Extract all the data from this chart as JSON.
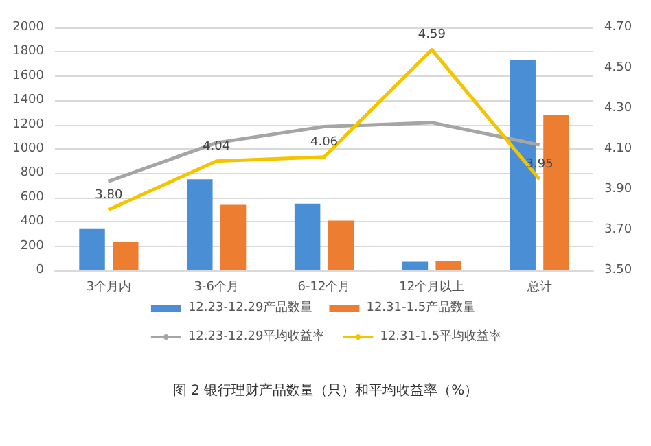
{
  "chart_data": {
    "type": "bar",
    "title": "图 2 银行理财产品数量（只）和平均收益率（%）",
    "categories": [
      "3个月内",
      "3-6个月",
      "6-12个月",
      "12个月以上",
      "总计"
    ],
    "series": [
      {
        "name": "12.23-12.29产品数量",
        "color": "#4a8fd6",
        "values": [
          340,
          750,
          550,
          70,
          1730
        ]
      },
      {
        "name": "12.31-1.5产品数量",
        "color": "#ed7d31",
        "values": [
          235,
          540,
          410,
          75,
          1280
        ]
      },
      {
        "name": "12.23-12.29平均收益率",
        "type": "line",
        "axis": "y2",
        "color": "#a5a5a5",
        "values": [
          3.94,
          4.13,
          4.21,
          4.23,
          4.12
        ]
      },
      {
        "name": "12.31-1.5平均收益率",
        "type": "line",
        "axis": "y2",
        "color": "#f5c400",
        "values": [
          3.8,
          4.04,
          4.06,
          4.59,
          3.95
        ],
        "value_labels": [
          "3.80",
          "4.04",
          "4.06",
          "4.59",
          "3.95"
        ]
      }
    ],
    "ylim": [
      0,
      2000
    ],
    "yticks": [
      0,
      200,
      400,
      600,
      800,
      1000,
      1200,
      1400,
      1600,
      1800,
      2000
    ],
    "y2lim": [
      3.5,
      4.7
    ],
    "y2ticks": [
      {
        "value": 3.5,
        "label": "3.50"
      },
      {
        "value": 3.7,
        "label": "3.70"
      },
      {
        "value": 3.9,
        "label": "3.90"
      },
      {
        "value": 4.1,
        "label": "4.10"
      },
      {
        "value": 4.3,
        "label": "4.30"
      },
      {
        "value": 4.5,
        "label": "4.50"
      },
      {
        "value": 4.7,
        "label": "4.70"
      }
    ],
    "grid": "y",
    "legend": "bottom"
  }
}
